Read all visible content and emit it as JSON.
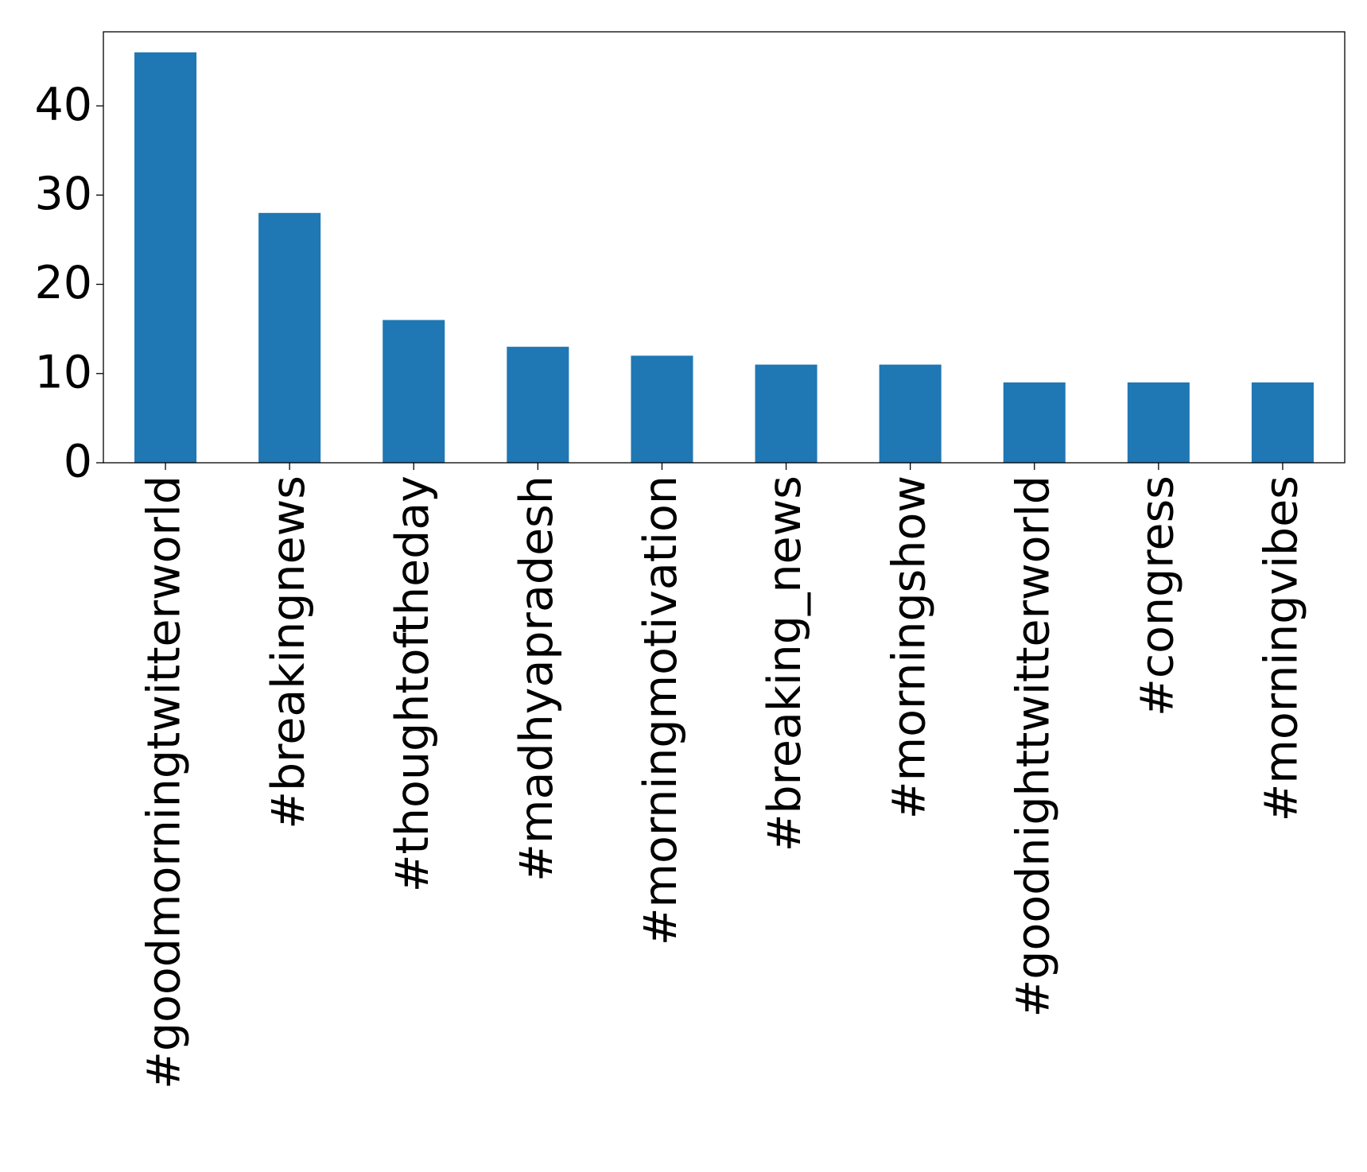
{
  "chart_data": {
    "type": "bar",
    "categories": [
      "#goodmorningtwitterworld",
      "#breakingnews",
      "#thoughtoftheday",
      "#madhyapradesh",
      "#morningmotivation",
      "#breaking_news",
      "#morningshow",
      "#goodnighttwitterworld",
      "#congress",
      "#morningvibes"
    ],
    "values": [
      46,
      28,
      16,
      13,
      12,
      11,
      11,
      9,
      9,
      9
    ],
    "color": "#1f77b4",
    "ylim": [
      0,
      48.3
    ],
    "yticks": [
      0,
      10,
      20,
      30,
      40
    ],
    "grid": false
  }
}
